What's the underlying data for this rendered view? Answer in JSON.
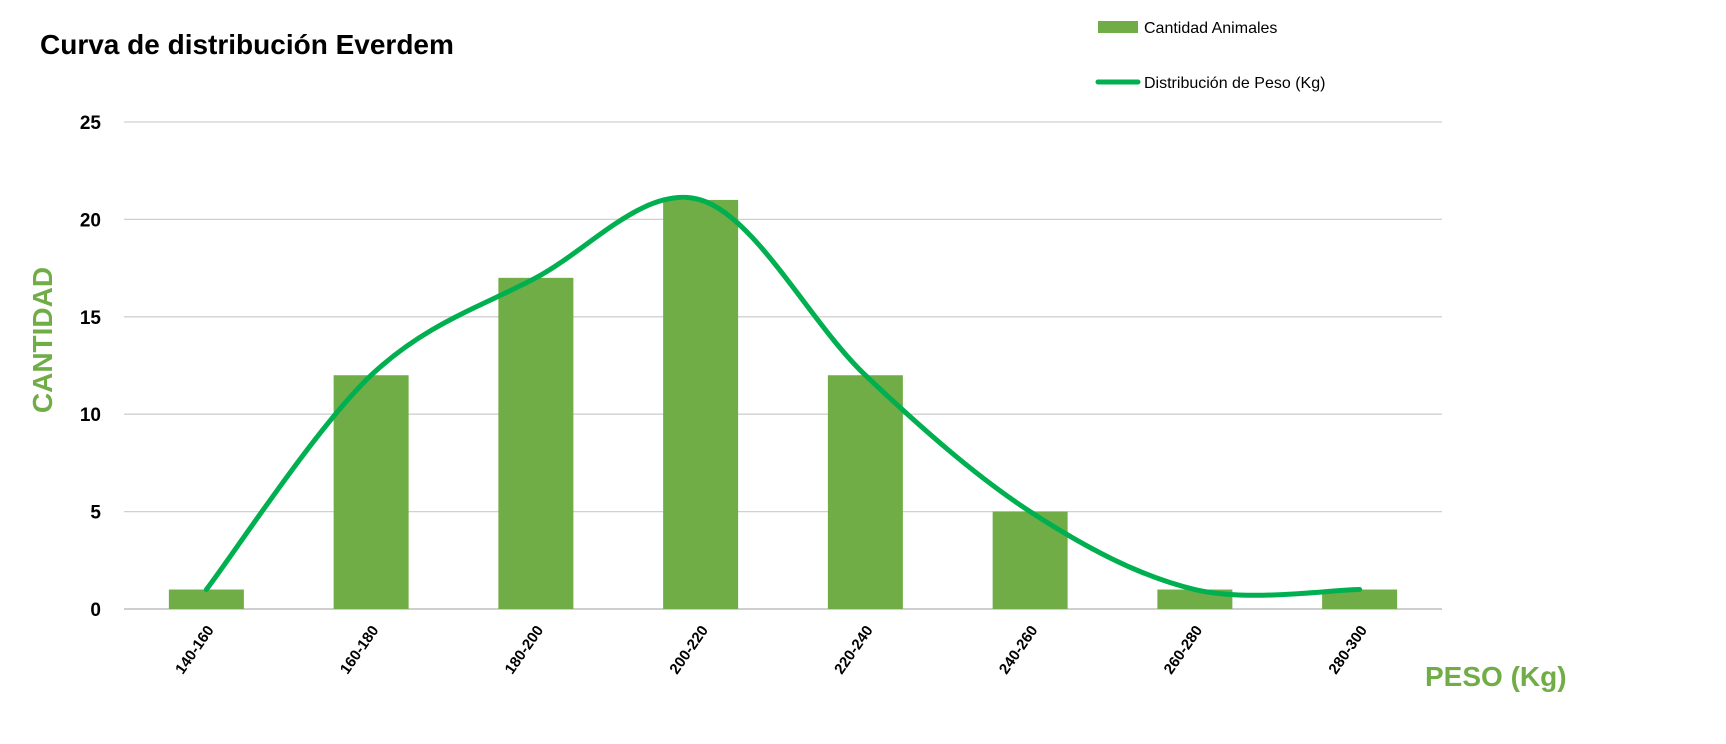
{
  "chart_data": {
    "type": "bar",
    "title": "Curva de distribución Everdem",
    "xlabel": "PESO (Kg)",
    "ylabel": "CANTIDAD",
    "categories": [
      "140-160",
      "160-180",
      "180-200",
      "200-220",
      "220-240",
      "240-260",
      "260-280",
      "280-300"
    ],
    "series": [
      {
        "name": "Cantidad Animales",
        "type": "bar",
        "values": [
          1,
          12,
          17,
          21,
          12,
          5,
          1,
          1
        ],
        "color": "#70AD47"
      },
      {
        "name": "Distribución de Peso (Kg)",
        "type": "line",
        "smooth": true,
        "values": [
          1,
          12,
          17,
          21,
          12,
          5,
          1,
          1
        ],
        "color": "#00B050"
      }
    ],
    "ylim": [
      0,
      25
    ],
    "yticks": [
      0,
      5,
      10,
      15,
      20,
      25
    ],
    "grid": true,
    "legend_position": "top-right",
    "axis_title_color": "#70AD47"
  }
}
